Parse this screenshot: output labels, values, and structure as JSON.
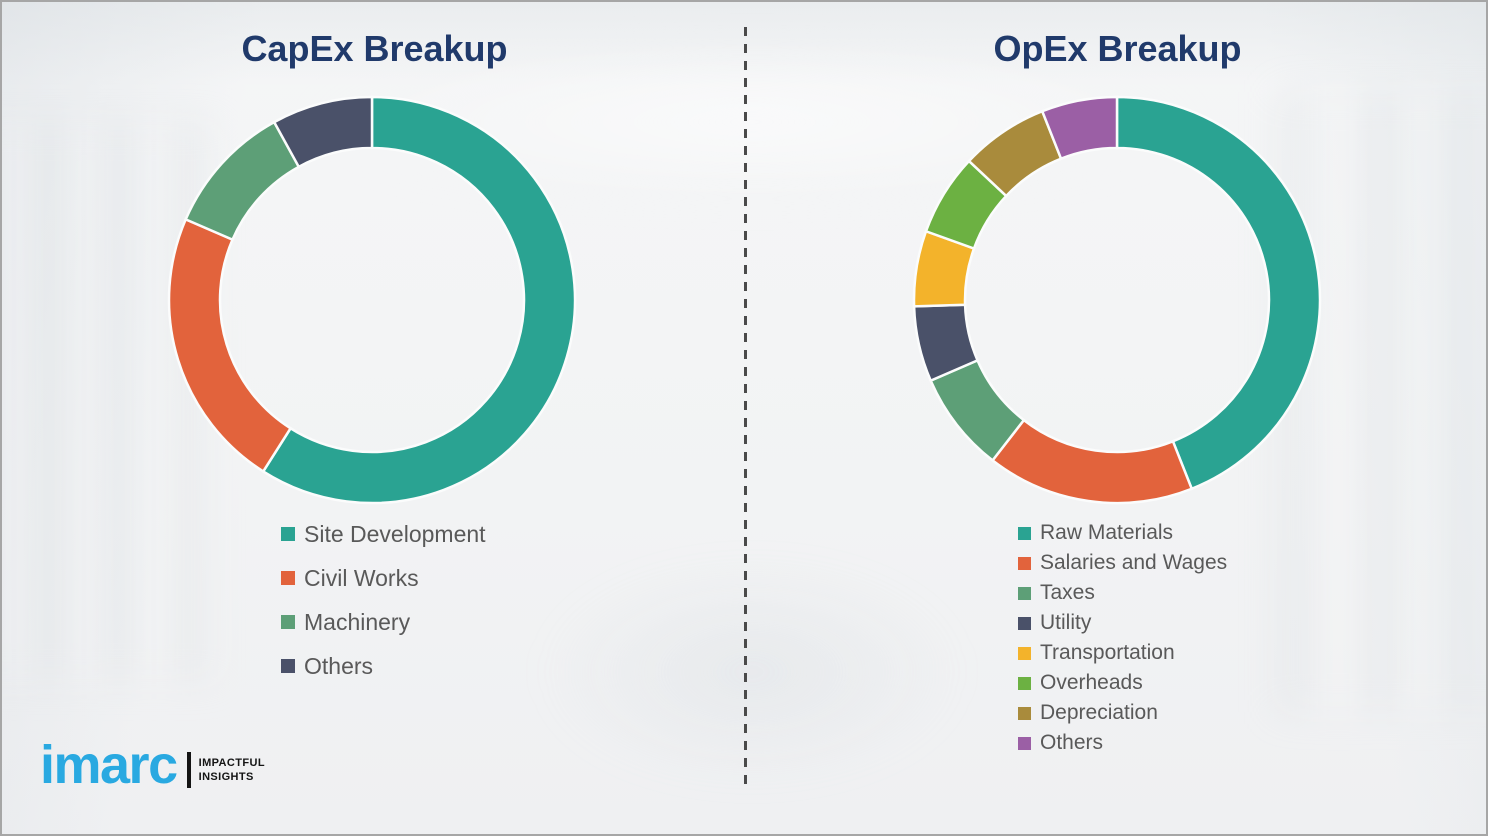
{
  "palette": {
    "page_background": "#f3f4f5",
    "page_border": "#a6a6a6",
    "title_color": "#203a6b",
    "legend_text_color": "#595959",
    "divider_color": "#4a4a4a",
    "segment_gap_color": "#fbfcfc"
  },
  "chart_data": [
    {
      "type": "pie",
      "variant": "donut",
      "title": "CapEx Breakup",
      "start_angle_deg": 0,
      "direction": "clockwise",
      "legend_position": "below",
      "categories": [
        "Site Development",
        "Civil Works",
        "Machinery",
        "Others"
      ],
      "values": [
        59,
        22.5,
        10.5,
        8
      ],
      "colors": [
        "#2aa392",
        "#e2633c",
        "#5d9f77",
        "#4a5169"
      ]
    },
    {
      "type": "pie",
      "variant": "donut",
      "title": "OpEx Breakup",
      "start_angle_deg": 0,
      "direction": "clockwise",
      "legend_position": "below",
      "categories": [
        "Raw Materials",
        "Salaries and Wages",
        "Taxes",
        "Utility",
        "Transportation",
        "Overheads",
        "Depreciation",
        "Others"
      ],
      "values": [
        44,
        16.5,
        8,
        6,
        6,
        6.5,
        7,
        6
      ],
      "colors": [
        "#2aa392",
        "#e2633c",
        "#5d9f77",
        "#4a5169",
        "#f3b32b",
        "#6cb142",
        "#a98b3c",
        "#9b5fa5"
      ]
    }
  ],
  "logo": {
    "brand": "imarc",
    "brand_color": "#29a9e1",
    "tagline_line1": "IMPACTFUL",
    "tagline_line2": "INSIGHTS"
  }
}
